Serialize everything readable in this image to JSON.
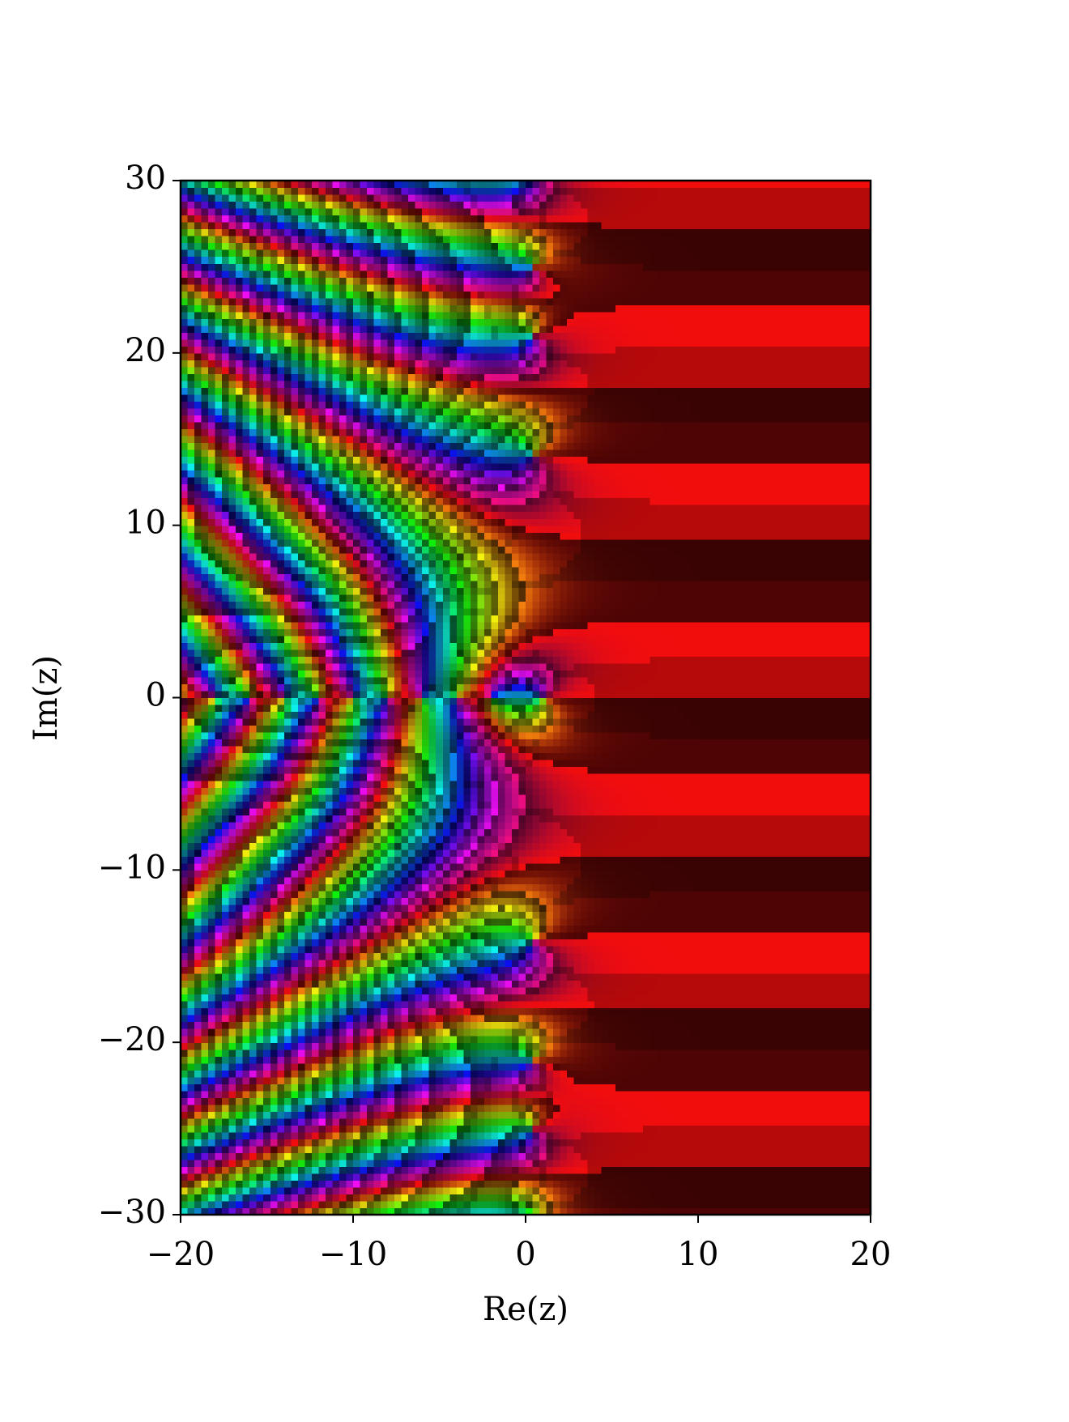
{
  "chart_data": {
    "type": "domain_coloring",
    "x_label": "Re(z)",
    "y_label": "Im(z)",
    "xlim": [
      -20,
      20
    ],
    "ylim": [
      -30,
      30
    ],
    "xticks": [
      {
        "value": -20,
        "label": "−20"
      },
      {
        "value": -10,
        "label": "−10"
      },
      0,
      10,
      20
    ],
    "yticks": [
      {
        "value": -30,
        "label": "−30"
      },
      {
        "value": -20,
        "label": "−20"
      },
      {
        "value": -10,
        "label": "−10"
      },
      0,
      10,
      20,
      30
    ]
  }
}
